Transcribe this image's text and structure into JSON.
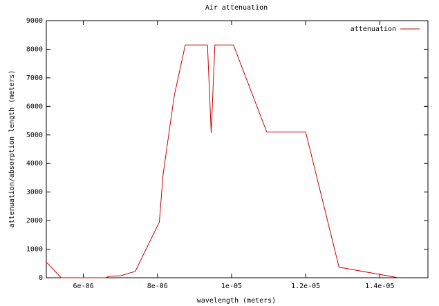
{
  "chart_data": {
    "type": "line",
    "title": "Air attenuation",
    "x_label": "wavelength (meters)",
    "y_label": "attenuation/absorption length (meters)",
    "x": [
      5e-06,
      5.4e-06,
      6.6e-06,
      6.7e-06,
      7e-06,
      7.4e-06,
      8.05e-06,
      8.15e-06,
      8.45e-06,
      8.75e-06,
      9.35e-06,
      9.45e-06,
      9.55e-06,
      1.005e-05,
      1.095e-05,
      1.2e-05,
      1.29e-05,
      1.45e-05
    ],
    "series": [
      {
        "name": "attenuation",
        "color": "#cc0000",
        "values": [
          550,
          0,
          0,
          50,
          70,
          220,
          1950,
          3600,
          6350,
          8150,
          8150,
          5070,
          8150,
          8150,
          5100,
          5100,
          370,
          0
        ]
      }
    ],
    "xlim": [
      5e-06,
      1.53e-05
    ],
    "ylim": [
      0,
      9000
    ],
    "xticks": [
      {
        "value": 6e-06,
        "label": "6e-06"
      },
      {
        "value": 8e-06,
        "label": "8e-06"
      },
      {
        "value": 1e-05,
        "label": "1e-05"
      },
      {
        "value": 1.2e-05,
        "label": "1.2e-05"
      },
      {
        "value": 1.4e-05,
        "label": "1.4e-05"
      }
    ],
    "yticks": [
      0,
      1000,
      2000,
      3000,
      4000,
      5000,
      6000,
      7000,
      8000,
      9000
    ],
    "legend": "top-right",
    "grid": false
  }
}
